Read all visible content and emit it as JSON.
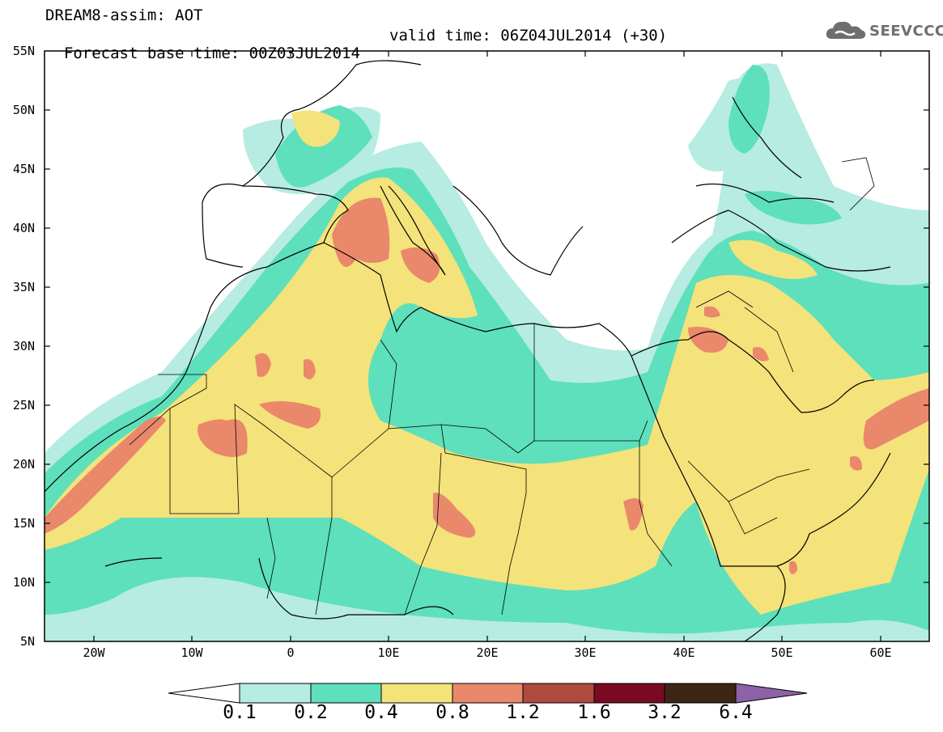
{
  "title": {
    "line1": "DREAM8-assim: AOT",
    "line2_base": "Forecast base time: 00Z03JUL2014",
    "line2_valid": "valid time: 06Z04JUL2014 (+30)"
  },
  "logo": {
    "text": "SEEVCCC",
    "icon": "cloud-icon"
  },
  "axes": {
    "lat_labels": [
      "55N",
      "50N",
      "45N",
      "40N",
      "35N",
      "30N",
      "25N",
      "20N",
      "15N",
      "10N",
      "5N"
    ],
    "lon_labels": [
      "20W",
      "10W",
      "0",
      "10E",
      "20E",
      "30E",
      "40E",
      "50E",
      "60E"
    ],
    "lat_range": [
      5,
      55
    ],
    "lon_range": [
      -25,
      65
    ]
  },
  "colorbar": {
    "labels": [
      "0.1",
      "0.2",
      "0.4",
      "0.8",
      "1.2",
      "1.6",
      "3.2",
      "6.4"
    ],
    "colors": [
      "#ffffff",
      "#b6ece1",
      "#5de0bb",
      "#f4e27a",
      "#e9886b",
      "#b04a3e",
      "#7a0a22",
      "#3d2615",
      "#8c62a8"
    ]
  },
  "fields": {
    "light_teal": "#b6ece1",
    "teal": "#5de0bb",
    "yellow": "#f4e27a",
    "orange": "#e9886b"
  }
}
